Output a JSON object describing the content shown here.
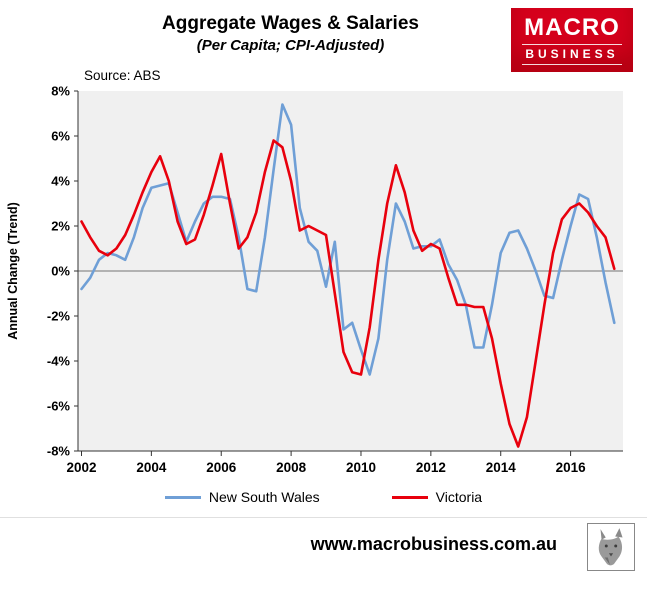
{
  "header": {
    "title": "Aggregate Wages & Salaries",
    "subtitle": "(Per Capita; CPI-Adjusted)",
    "source": "Source: ABS"
  },
  "logo": {
    "line1": "MACRO",
    "line2": "BUSINESS",
    "bg": "#d6001c"
  },
  "footer": {
    "url": "www.macrobusiness.com.au"
  },
  "chart_data": {
    "type": "line",
    "title": "Aggregate Wages & Salaries",
    "subtitle": "(Per Capita; CPI-Adjusted)",
    "ylabel": "Annual Change (Trend)",
    "ylim": [
      -8,
      8
    ],
    "ytick_step": 2,
    "ytick_suffix": "%",
    "xlim": [
      2001.9,
      2017.5
    ],
    "xticks": [
      2002,
      2004,
      2006,
      2008,
      2010,
      2012,
      2014,
      2016
    ],
    "grid": false,
    "legend_position": "bottom",
    "colors": {
      "plot_bg": "#f0f0f0",
      "axis": "#333333",
      "zero_line": "#8c8c8c"
    },
    "x": [
      2002.0,
      2002.25,
      2002.5,
      2002.75,
      2003.0,
      2003.25,
      2003.5,
      2003.75,
      2004.0,
      2004.25,
      2004.5,
      2004.75,
      2005.0,
      2005.25,
      2005.5,
      2005.75,
      2006.0,
      2006.25,
      2006.5,
      2006.75,
      2007.0,
      2007.25,
      2007.5,
      2007.75,
      2008.0,
      2008.25,
      2008.5,
      2008.75,
      2009.0,
      2009.25,
      2009.5,
      2009.75,
      2010.0,
      2010.25,
      2010.5,
      2010.75,
      2011.0,
      2011.25,
      2011.5,
      2011.75,
      2012.0,
      2012.25,
      2012.5,
      2012.75,
      2013.0,
      2013.25,
      2013.5,
      2013.75,
      2014.0,
      2014.25,
      2014.5,
      2014.75,
      2015.0,
      2015.25,
      2015.5,
      2015.75,
      2016.0,
      2016.25,
      2016.5,
      2016.75,
      2017.0,
      2017.25
    ],
    "series": [
      {
        "name": "New South Wales",
        "color": "#6f9fd6",
        "values": [
          -0.8,
          -0.3,
          0.5,
          0.8,
          0.7,
          0.5,
          1.5,
          2.8,
          3.7,
          3.8,
          3.9,
          2.6,
          1.3,
          2.2,
          3.0,
          3.3,
          3.3,
          3.2,
          1.5,
          -0.8,
          -0.9,
          1.5,
          4.5,
          7.4,
          6.5,
          2.8,
          1.3,
          0.9,
          -0.7,
          1.3,
          -2.6,
          -2.3,
          -3.5,
          -4.6,
          -3.0,
          0.5,
          3.0,
          2.2,
          1.0,
          1.1,
          1.1,
          1.4,
          0.3,
          -0.4,
          -1.5,
          -3.4,
          -3.4,
          -1.5,
          0.8,
          1.7,
          1.8,
          1.0,
          0.0,
          -1.1,
          -1.2,
          0.5,
          2.0,
          3.4,
          3.2,
          1.5,
          -0.5,
          -2.3
        ]
      },
      {
        "name": "Victoria",
        "color": "#e8000d",
        "values": [
          2.2,
          1.5,
          0.9,
          0.7,
          1.0,
          1.6,
          2.5,
          3.5,
          4.4,
          5.1,
          4.0,
          2.2,
          1.2,
          1.4,
          2.5,
          3.8,
          5.2,
          3.0,
          1.0,
          1.5,
          2.6,
          4.4,
          5.8,
          5.5,
          4.0,
          1.8,
          2.0,
          1.8,
          1.6,
          -1.0,
          -3.6,
          -4.5,
          -4.6,
          -2.5,
          0.5,
          3.0,
          4.7,
          3.5,
          1.8,
          0.9,
          1.2,
          1.0,
          -0.3,
          -1.5,
          -1.5,
          -1.6,
          -1.6,
          -3.0,
          -5.0,
          -6.8,
          -7.8,
          -6.5,
          -4.0,
          -1.5,
          0.8,
          2.3,
          2.8,
          3.0,
          2.6,
          2.0,
          1.5,
          0.1
        ]
      }
    ]
  }
}
